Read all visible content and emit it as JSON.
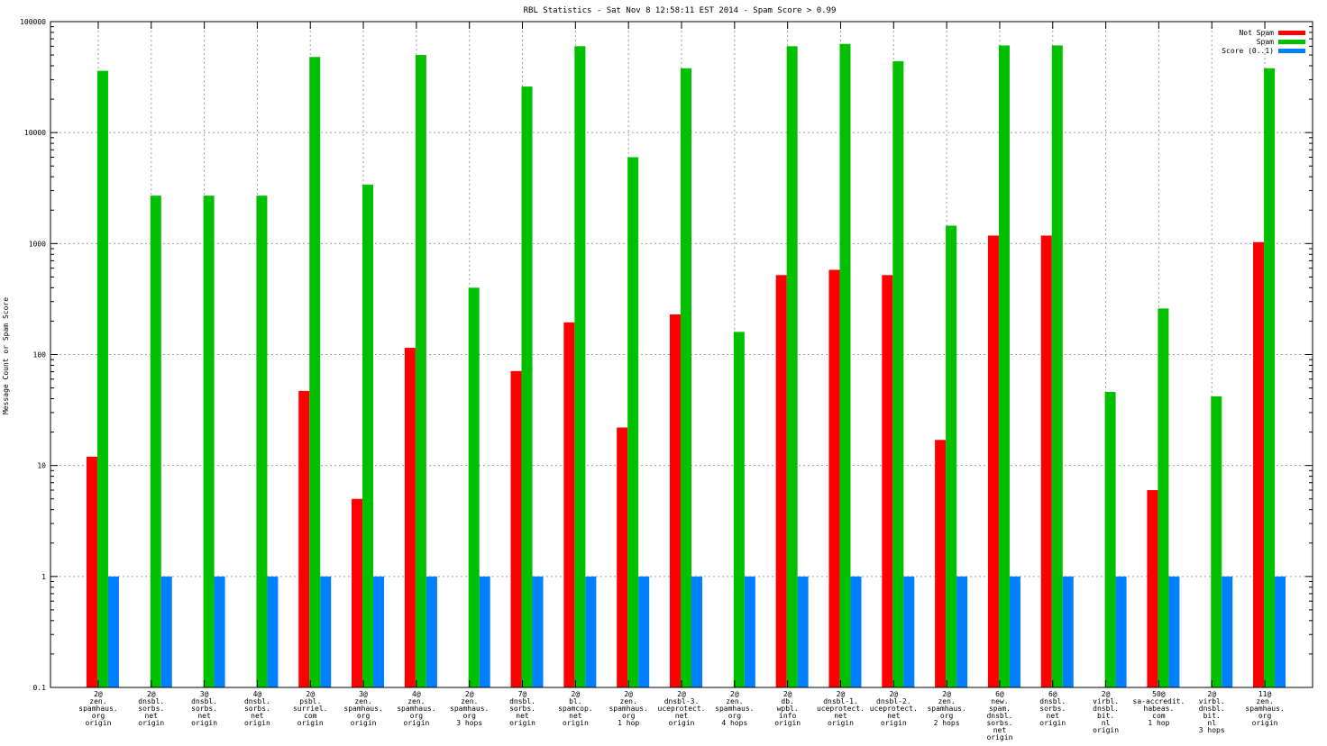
{
  "chart_data": {
    "type": "bar",
    "title": "RBL Statistics - Sat Nov  8 12:58:11 EST 2014 - Spam Score > 0.99",
    "xlabel": "",
    "ylabel": "Message Count or Spam Score",
    "yscale": "log",
    "ylim": [
      0.1,
      100000
    ],
    "y_ticks": [
      0.1,
      1,
      10,
      100,
      1000,
      10000,
      100000
    ],
    "y_tick_labels": [
      "0.1",
      "1",
      "10",
      "100",
      "1000",
      "10000",
      "100000"
    ],
    "grid": true,
    "legend_position": "top-right",
    "categories": [
      [
        "2@",
        "zen.",
        "spamhaus.",
        "org",
        "origin"
      ],
      [
        "2@",
        "dnsbl.",
        "sorbs.",
        "net",
        "origin"
      ],
      [
        "3@",
        "dnsbl.",
        "sorbs.",
        "net",
        "origin"
      ],
      [
        "4@",
        "dnsbl.",
        "sorbs.",
        "net",
        "origin"
      ],
      [
        "2@",
        "psbl.",
        "surriel.",
        "com",
        "origin"
      ],
      [
        "3@",
        "zen.",
        "spamhaus.",
        "org",
        "origin"
      ],
      [
        "4@",
        "zen.",
        "spamhaus.",
        "org",
        "origin"
      ],
      [
        "2@",
        "zen.",
        "spamhaus.",
        "org",
        "3 hops"
      ],
      [
        "7@",
        "dnsbl.",
        "sorbs.",
        "net",
        "origin"
      ],
      [
        "2@",
        "bl.",
        "spamcop.",
        "net",
        "origin"
      ],
      [
        "2@",
        "zen.",
        "spamhaus.",
        "org",
        "1 hop"
      ],
      [
        "2@",
        "dnsbl-3.",
        "uceprotect.",
        "net",
        "origin"
      ],
      [
        "2@",
        "zen.",
        "spamhaus.",
        "org",
        "4 hops"
      ],
      [
        "2@",
        "db.",
        "wpbl.",
        "info",
        "origin"
      ],
      [
        "2@",
        "dnsbl-1.",
        "uceprotect.",
        "net",
        "origin"
      ],
      [
        "2@",
        "dnsbl-2.",
        "uceprotect.",
        "net",
        "origin"
      ],
      [
        "2@",
        "zen.",
        "spamhaus.",
        "org",
        "2 hops"
      ],
      [
        "6@",
        "new.",
        "spam.",
        "dnsbl.",
        "sorbs.",
        "net",
        "origin"
      ],
      [
        "6@",
        "dnsbl.",
        "sorbs.",
        "net",
        "origin"
      ],
      [
        "2@",
        "virbl.",
        "dnsbl.",
        "bit.",
        "nl",
        "origin"
      ],
      [
        "50@",
        "sa-accredit.",
        "habeas.",
        "com",
        "1 hop"
      ],
      [
        "2@",
        "virbl.",
        "dnsbl.",
        "bit.",
        "nl",
        "3 hops"
      ],
      [
        "11@",
        "zen.",
        "spamhaus.",
        "org",
        "origin"
      ]
    ],
    "series": [
      {
        "name": "Not Spam",
        "color": "#ff0000",
        "values": [
          12,
          null,
          null,
          null,
          47,
          5,
          115,
          null,
          71,
          195,
          22,
          230,
          null,
          520,
          580,
          520,
          17,
          1180,
          1180,
          null,
          6,
          null,
          1030
        ]
      },
      {
        "name": "Spam",
        "color": "#00c000",
        "values": [
          36000,
          2700,
          2700,
          2700,
          48000,
          3400,
          50000,
          400,
          26000,
          60000,
          6000,
          38000,
          160,
          60000,
          63000,
          44000,
          1450,
          61000,
          61000,
          46,
          260,
          42,
          38000
        ]
      },
      {
        "name": "Score (0..1)",
        "color": "#0080ff",
        "values": [
          1,
          1,
          1,
          1,
          1,
          1,
          1,
          1,
          1,
          1,
          1,
          1,
          1,
          1,
          1,
          1,
          1,
          1,
          1,
          1,
          1,
          1,
          1
        ]
      }
    ]
  }
}
